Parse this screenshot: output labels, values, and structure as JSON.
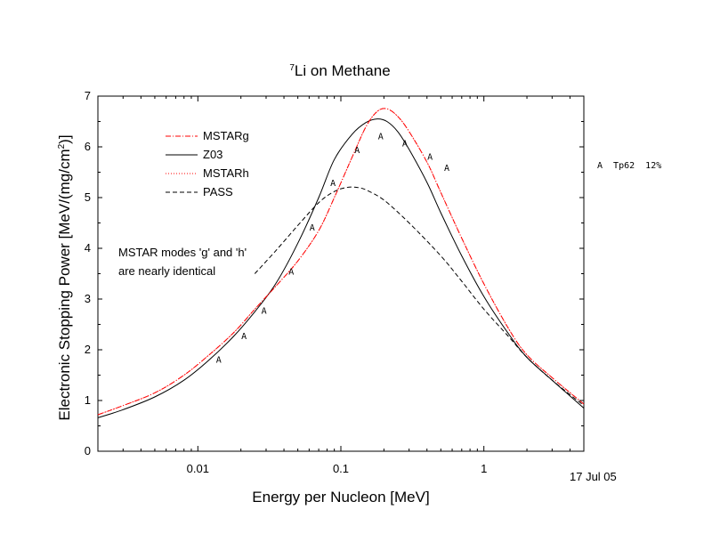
{
  "chart_data": {
    "type": "line",
    "title_sup": "7",
    "title_main": "Li on Methane",
    "xlabel": "Energy per Nucleon [MeV]",
    "ylabel_main": "Electronic Stopping Power [MeV/(mg/cm",
    "ylabel_sup": "2",
    "ylabel_end": ")]",
    "xscale": "log",
    "xlim": [
      0.002,
      5
    ],
    "ylim": [
      0,
      7
    ],
    "x_ticks": [
      {
        "value": 0.01,
        "label": "0.01"
      },
      {
        "value": 0.1,
        "label": "0.1"
      },
      {
        "value": 1,
        "label": "1"
      }
    ],
    "y_ticks": [
      {
        "value": 0,
        "label": "0"
      },
      {
        "value": 1,
        "label": "1"
      },
      {
        "value": 2,
        "label": "2"
      },
      {
        "value": 3,
        "label": "3"
      },
      {
        "value": 4,
        "label": "4"
      },
      {
        "value": 5,
        "label": "5"
      },
      {
        "value": 6,
        "label": "6"
      },
      {
        "value": 7,
        "label": "7"
      }
    ],
    "grid": false,
    "legend_position": "top-left",
    "series": [
      {
        "name": "MSTARg",
        "color": "#ff0000",
        "dash": "6,2,1,2",
        "x": [
          0.002,
          0.003,
          0.005,
          0.008,
          0.012,
          0.018,
          0.025,
          0.035,
          0.05,
          0.07,
          0.09,
          0.12,
          0.15,
          0.18,
          0.21,
          0.25,
          0.3,
          0.4,
          0.5,
          0.7,
          1,
          1.5,
          2,
          3,
          5
        ],
        "y": [
          0.72,
          0.9,
          1.15,
          1.5,
          1.9,
          2.35,
          2.8,
          3.25,
          3.75,
          4.35,
          5.0,
          5.8,
          6.4,
          6.7,
          6.75,
          6.6,
          6.3,
          5.7,
          5.1,
          4.2,
          3.3,
          2.4,
          1.9,
          1.45,
          0.93
        ]
      },
      {
        "name": "Z03",
        "color": "#000000",
        "dash": "",
        "x": [
          0.002,
          0.003,
          0.005,
          0.008,
          0.012,
          0.018,
          0.025,
          0.035,
          0.05,
          0.07,
          0.09,
          0.12,
          0.15,
          0.18,
          0.21,
          0.25,
          0.3,
          0.4,
          0.5,
          0.7,
          1,
          1.5,
          2,
          3,
          5
        ],
        "y": [
          0.66,
          0.82,
          1.07,
          1.4,
          1.8,
          2.28,
          2.75,
          3.3,
          4.1,
          5.0,
          5.75,
          6.25,
          6.48,
          6.55,
          6.5,
          6.3,
          5.95,
          5.3,
          4.7,
          3.85,
          3.05,
          2.3,
          1.85,
          1.4,
          0.85
        ]
      },
      {
        "name": "MSTARh",
        "color": "#ff0000",
        "dash": "1,2",
        "x": [
          0.002,
          0.003,
          0.005,
          0.008,
          0.012,
          0.018,
          0.025,
          0.035,
          0.05,
          0.07,
          0.09,
          0.12,
          0.15,
          0.18,
          0.21,
          0.25,
          0.3,
          0.4,
          0.5,
          0.7,
          1,
          1.5,
          2,
          3,
          5
        ],
        "y": [
          0.72,
          0.9,
          1.15,
          1.5,
          1.9,
          2.35,
          2.8,
          3.25,
          3.75,
          4.35,
          5.0,
          5.8,
          6.4,
          6.7,
          6.75,
          6.6,
          6.3,
          5.7,
          5.1,
          4.2,
          3.3,
          2.4,
          1.9,
          1.45,
          0.93
        ]
      },
      {
        "name": "PASS",
        "color": "#000000",
        "dash": "5,3",
        "x": [
          0.025,
          0.035,
          0.05,
          0.07,
          0.09,
          0.11,
          0.13,
          0.15,
          0.2,
          0.3,
          0.5,
          0.7,
          1,
          1.5,
          2,
          3,
          5
        ],
        "y": [
          3.5,
          3.95,
          4.45,
          4.9,
          5.12,
          5.2,
          5.2,
          5.15,
          4.95,
          4.5,
          3.85,
          3.35,
          2.8,
          2.25,
          1.85,
          1.4,
          0.9
        ]
      }
    ],
    "markers": {
      "glyph": "A",
      "x": [
        0.014,
        0.021,
        0.029,
        0.045,
        0.063,
        0.088,
        0.13,
        0.19,
        0.28,
        0.42,
        0.55
      ],
      "y": [
        1.82,
        2.28,
        2.78,
        3.55,
        4.42,
        5.3,
        5.95,
        6.22,
        6.08,
        5.82,
        5.6
      ]
    },
    "marker_legend": "A  Tp62  12%",
    "annotation_line1": "MSTAR modes 'g' and 'h'",
    "annotation_line2": "are nearly identical",
    "date_stamp": "17 Jul 05"
  }
}
